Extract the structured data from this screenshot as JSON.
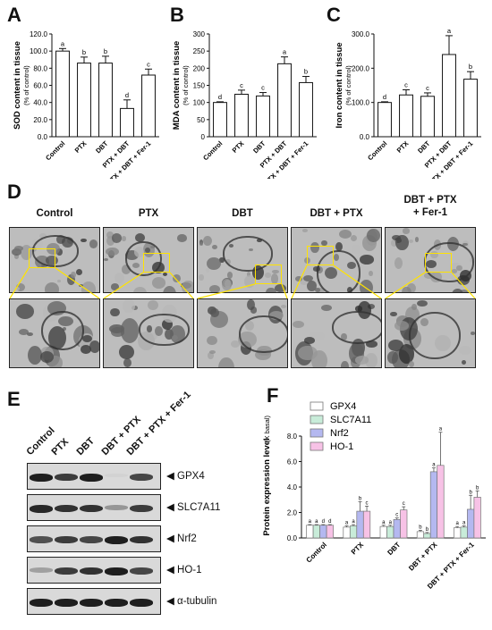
{
  "panel_letters": [
    "A",
    "B",
    "C",
    "D",
    "E",
    "F"
  ],
  "chart_data": [
    {
      "id": "A",
      "type": "bar",
      "categories": [
        "Control",
        "PTX",
        "DBT",
        "PTX + DBT",
        "PTX + DBT + Fer-1"
      ],
      "values": [
        100,
        86,
        86,
        33,
        72
      ],
      "errors": [
        3,
        7,
        8,
        10,
        7
      ],
      "letters": [
        "a",
        "b",
        "b",
        "d",
        "c"
      ],
      "ylabel": "SOD content in tissue",
      "ylabel_sub": "(% of control)",
      "ylim": [
        0,
        120
      ],
      "yticks": [
        "0.0",
        "20.0",
        "40.0",
        "60.0",
        "80.0",
        "100.0",
        "120.0"
      ]
    },
    {
      "id": "B",
      "type": "bar",
      "categories": [
        "Control",
        "PTX",
        "DBT",
        "PTX + DBT",
        "PTX + DBT + Fer-1"
      ],
      "values": [
        100,
        124,
        119,
        213,
        158
      ],
      "errors": [
        2,
        12,
        10,
        20,
        18
      ],
      "letters": [
        "d",
        "c",
        "c",
        "a",
        "b"
      ],
      "ylabel": "MDA content in tissue",
      "ylabel_sub": "(% of control)",
      "ylim": [
        0,
        300
      ],
      "yticks": [
        "0",
        "50",
        "100",
        "150",
        "200",
        "250",
        "300"
      ]
    },
    {
      "id": "C",
      "type": "bar",
      "categories": [
        "Control",
        "PTX",
        "DBT",
        "PTX + DBT",
        "PTX + DBT + Fer-1"
      ],
      "values": [
        100,
        122,
        118,
        240,
        168
      ],
      "errors": [
        2,
        15,
        10,
        55,
        22
      ],
      "letters": [
        "d",
        "c",
        "c",
        "a",
        "b"
      ],
      "ylabel": "Iron content in tissue",
      "ylabel_sub": "(% of control)",
      "ylim": [
        0,
        300
      ],
      "yticks": [
        "0.0",
        "100.0",
        "200.0",
        "300.0"
      ]
    },
    {
      "id": "F",
      "type": "bar",
      "categories": [
        "Control",
        "PTX",
        "DBT",
        "DBT + PTX",
        "DBT + PTX + Fer-1"
      ],
      "series": [
        {
          "name": "GPX4",
          "color": "#ffffff",
          "values": [
            1.0,
            0.85,
            0.9,
            0.5,
            0.8
          ],
          "errors": [
            0.05,
            0.1,
            0.1,
            0.1,
            0.1
          ],
          "letters": [
            "a",
            "a",
            "a",
            "b",
            "a"
          ]
        },
        {
          "name": "SLC7A11",
          "color": "#c8ecd9",
          "values": [
            1.0,
            0.95,
            0.9,
            0.35,
            0.85
          ],
          "errors": [
            0.05,
            0.1,
            0.1,
            0.08,
            0.1
          ],
          "letters": [
            "a",
            "a",
            "a",
            "b",
            "a"
          ]
        },
        {
          "name": "Nrf2",
          "color": "#b4b8f0",
          "values": [
            1.0,
            2.1,
            1.45,
            5.2,
            2.25
          ],
          "errors": [
            0.05,
            0.75,
            0.12,
            0.3,
            1.1
          ],
          "letters": [
            "d",
            "b",
            "c",
            "a",
            "b"
          ]
        },
        {
          "name": "HO-1",
          "color": "#f7c2e6",
          "values": [
            1.0,
            2.1,
            2.2,
            5.7,
            3.2
          ],
          "errors": [
            0.05,
            0.4,
            0.25,
            2.6,
            0.5
          ],
          "letters": [
            "d",
            "c",
            "c",
            "a",
            "b"
          ]
        }
      ],
      "ylabel": "Protein expression level",
      "ylabel_sub": "(X basal)",
      "ylim": [
        0,
        8
      ],
      "yticks": [
        "0.0",
        "2.0",
        "4.0",
        "6.0",
        "8.0"
      ],
      "legend": "top-left"
    }
  ],
  "panel_d": {
    "groups": [
      {
        "title": "Control"
      },
      {
        "title": "PTX"
      },
      {
        "title": "DBT"
      },
      {
        "title": "DBT + PTX"
      },
      {
        "title": "DBT + PTX\n+ Fer-1"
      }
    ]
  },
  "panel_e": {
    "lanes": [
      "Control",
      "PTX",
      "DBT",
      "DBT + PTX",
      "DBT + PTX + Fer-1"
    ],
    "blots": [
      {
        "label": "GPX4",
        "intensity": [
          0.95,
          0.8,
          0.95,
          0.05,
          0.75
        ]
      },
      {
        "label": "SLC7A11",
        "intensity": [
          0.9,
          0.85,
          0.85,
          0.35,
          0.8
        ]
      },
      {
        "label": "Nrf2",
        "intensity": [
          0.7,
          0.8,
          0.75,
          0.95,
          0.85
        ]
      },
      {
        "label": "HO-1",
        "intensity": [
          0.3,
          0.8,
          0.85,
          0.95,
          0.75
        ]
      },
      {
        "label": "α-tubulin",
        "intensity": [
          0.95,
          0.95,
          0.95,
          0.95,
          0.95
        ]
      }
    ]
  }
}
